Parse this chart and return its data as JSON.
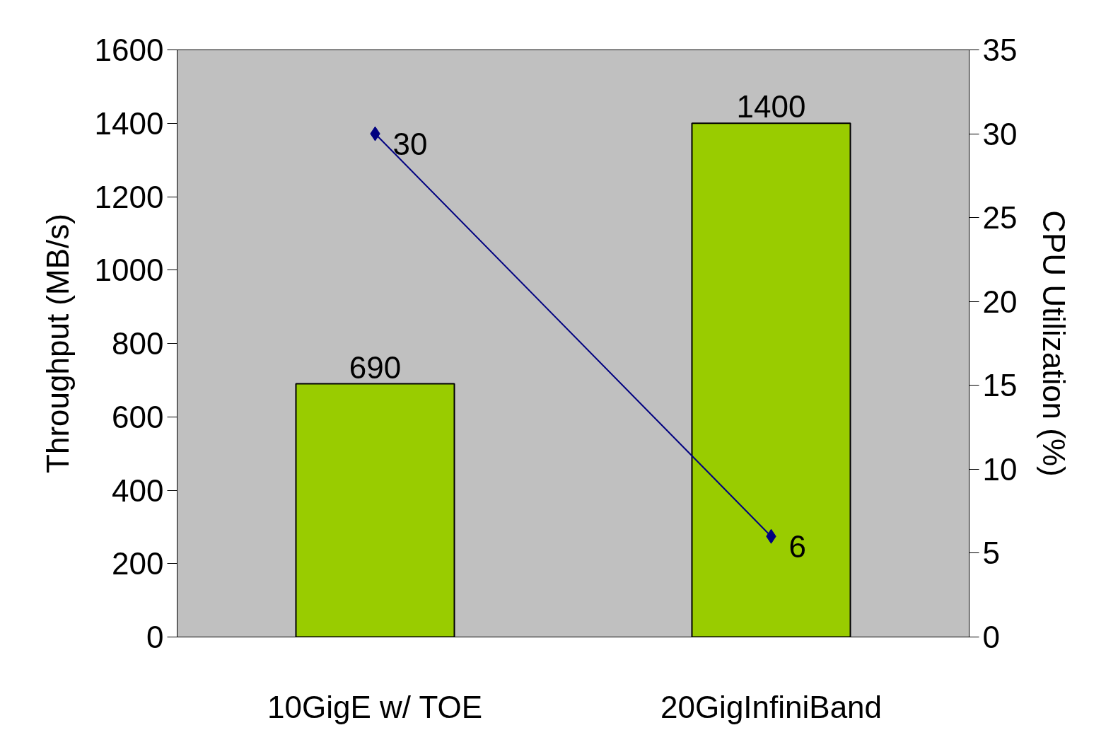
{
  "chart_data": {
    "type": "bar",
    "categories": [
      "10GigE w/ TOE",
      "20GigInfiniBand"
    ],
    "ylabel": "Throughput (MB/s)",
    "y2label": "CPU Utilization (%)",
    "series": [
      {
        "color": "#99cc00",
        "values": [
          690,
          1400
        ]
      },
      {
        "type": "line",
        "axis": "y2",
        "color": "#000080",
        "values": [
          30,
          6
        ]
      }
    ],
    "ylim": [
      0,
      1600
    ],
    "yticks": [
      0,
      200,
      400,
      600,
      800,
      1000,
      1200,
      1400,
      1600
    ],
    "y2lim": [
      0,
      35
    ],
    "y2ticks": [
      0,
      5,
      10,
      15,
      20,
      25,
      30,
      35
    ],
    "data_labels": true,
    "grid": false,
    "marker": "diamond",
    "line_style": "solid"
  }
}
